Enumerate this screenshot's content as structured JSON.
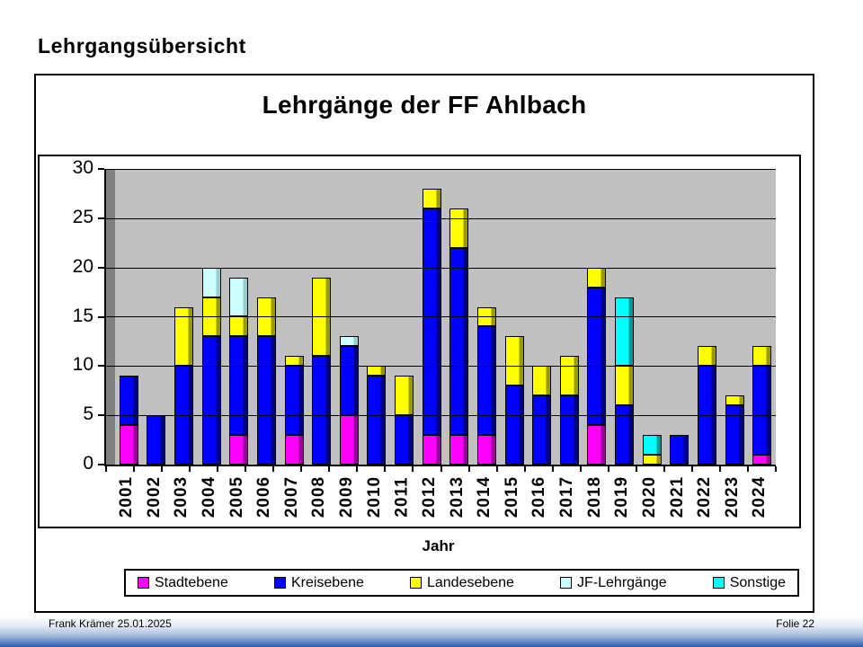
{
  "slide": {
    "heading": "Lehrgangsübersicht",
    "footer": {
      "author_date": "Frank Krämer 25.01.2025",
      "page": "Folie 22"
    }
  },
  "chart_data": {
    "type": "bar",
    "stacked": true,
    "title": "Lehrgänge der FF Ahlbach",
    "xlabel": "Jahr",
    "ylabel": "",
    "ylim": [
      0,
      30
    ],
    "ytick_step": 5,
    "grid": true,
    "legend_position": "bottom",
    "plot_bg_color": "#C0C0C0",
    "wall_color": "#808080",
    "categories": [
      "2001",
      "2002",
      "2003",
      "2004",
      "2005",
      "2006",
      "2007",
      "2008",
      "2009",
      "2010",
      "2011",
      "2012",
      "2013",
      "2014",
      "2015",
      "2016",
      "2017",
      "2018",
      "2019",
      "2020",
      "2021",
      "2022",
      "2023",
      "2024"
    ],
    "series": [
      {
        "name": "Stadtebene",
        "color": "#FF00FF",
        "shade": "#990099",
        "values": [
          4,
          0,
          0,
          0,
          3,
          0,
          3,
          0,
          5,
          0,
          0,
          3,
          3,
          3,
          0,
          0,
          0,
          4,
          0,
          0,
          0,
          0,
          0,
          1
        ]
      },
      {
        "name": "Kreisebene",
        "color": "#0000FF",
        "shade": "#000080",
        "values": [
          5,
          5,
          10,
          13,
          10,
          13,
          7,
          11,
          7,
          9,
          5,
          23,
          19,
          11,
          8,
          7,
          7,
          14,
          6,
          0,
          3,
          10,
          6,
          9
        ]
      },
      {
        "name": "Landesebene",
        "color": "#FFFF00",
        "shade": "#999900",
        "values": [
          0,
          0,
          6,
          4,
          2,
          4,
          1,
          8,
          0,
          1,
          4,
          2,
          4,
          2,
          5,
          3,
          4,
          2,
          4,
          1,
          0,
          2,
          1,
          2
        ]
      },
      {
        "name": "JF-Lehrgänge",
        "color": "#CCFFFF",
        "shade": "#99CCCC",
        "values": [
          0,
          0,
          0,
          3,
          4,
          0,
          0,
          0,
          1,
          0,
          0,
          0,
          0,
          0,
          0,
          0,
          0,
          0,
          0,
          0,
          0,
          0,
          0,
          0
        ]
      },
      {
        "name": "Sonstige",
        "color": "#00FFFF",
        "shade": "#009999",
        "values": [
          0,
          0,
          0,
          0,
          0,
          0,
          0,
          0,
          0,
          0,
          0,
          0,
          0,
          0,
          0,
          0,
          0,
          0,
          7,
          2,
          0,
          0,
          0,
          0
        ]
      }
    ],
    "totals": [
      9,
      5,
      16,
      20,
      19,
      17,
      11,
      19,
      13,
      10,
      9,
      28,
      26,
      16,
      13,
      10,
      11,
      20,
      17,
      3,
      3,
      12,
      7,
      12
    ]
  }
}
